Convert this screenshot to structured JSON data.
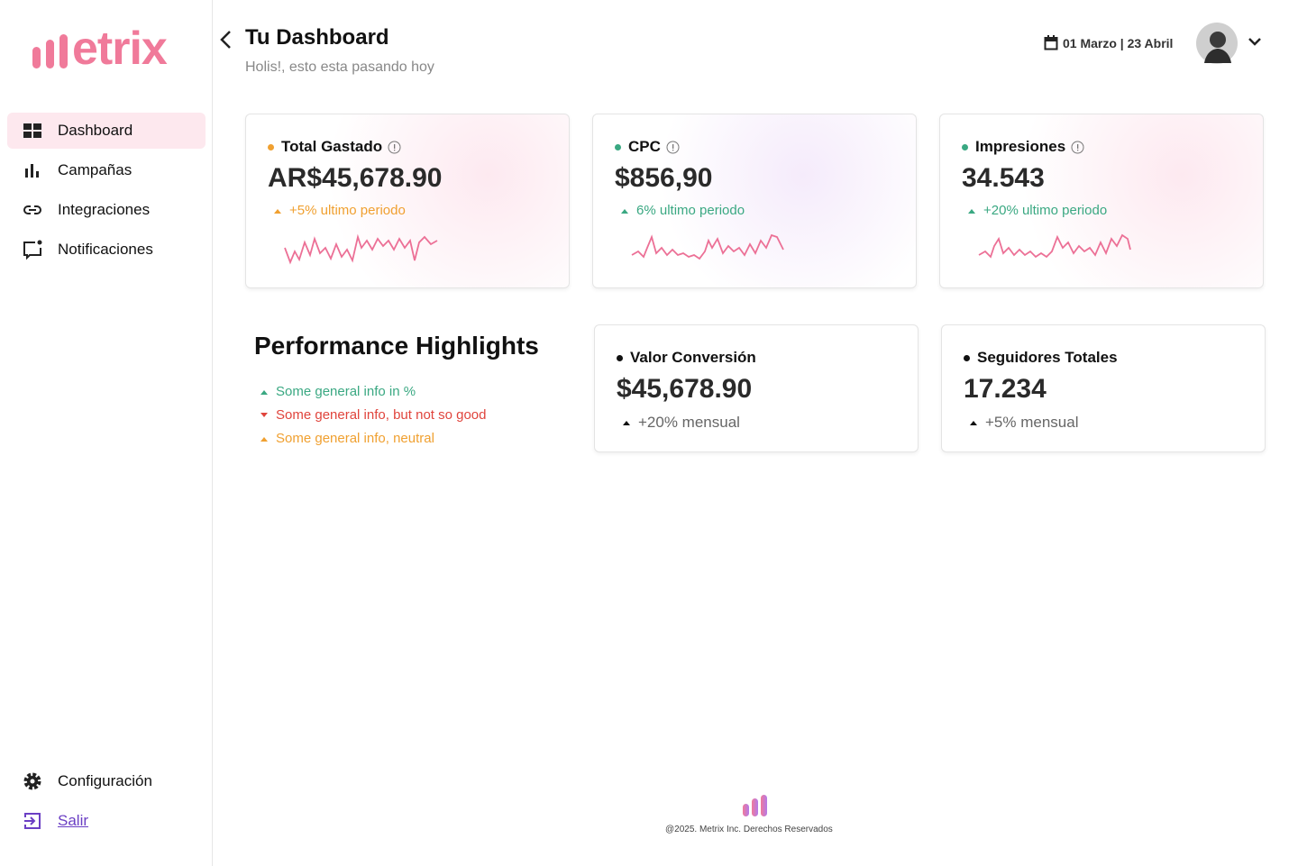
{
  "sidebar": {
    "logo": "etrix",
    "nav": [
      "Dashboard",
      "Campañas",
      "Integraciones",
      "Notificaciones"
    ],
    "bottom": [
      "Configuración",
      "Salir"
    ]
  },
  "header": {
    "title": "Tu Dashboard",
    "subtitle": "Holis!, esto esta pasando hoy",
    "date_range": "01 Marzo | 23 Abril"
  },
  "kpis": [
    {
      "label": "Total Gastado",
      "value": "AR$45,678.90",
      "change": "+5% ultimo periodo"
    },
    {
      "label": "CPC",
      "value": "$856,90",
      "change": "6% ultimo periodo"
    },
    {
      "label": "Impresiones",
      "value": "34.543",
      "change": "+20% ultimo periodo"
    }
  ],
  "highlights": {
    "title": "Performance Highlights",
    "items": [
      "Some general info in %",
      "Some general info, but not so good",
      "Some general info, neutral"
    ]
  },
  "stats": [
    {
      "label": "Valor Conversión",
      "value": "$45,678.90",
      "change": "+20% mensual"
    },
    {
      "label": "Seguidores Totales",
      "value": "17.234",
      "change": "+5% mensual"
    }
  ],
  "footer": "@2025. Metrix Inc. Derechos Reservados"
}
